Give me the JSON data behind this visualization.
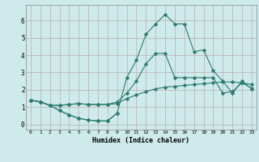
{
  "xlabel": "Humidex (Indice chaleur)",
  "x": [
    0,
    1,
    2,
    3,
    4,
    5,
    6,
    7,
    8,
    9,
    10,
    11,
    12,
    13,
    14,
    15,
    16,
    17,
    18,
    19,
    20,
    21,
    22,
    23
  ],
  "line1": [
    1.4,
    1.3,
    1.1,
    1.1,
    1.15,
    1.2,
    1.15,
    1.15,
    1.15,
    1.2,
    1.5,
    1.7,
    1.9,
    2.05,
    2.15,
    2.2,
    2.25,
    2.3,
    2.35,
    2.4,
    2.45,
    2.45,
    2.4,
    2.3
  ],
  "line2": [
    1.4,
    1.3,
    1.1,
    0.8,
    0.55,
    0.35,
    0.25,
    0.2,
    0.2,
    0.65,
    null,
    null,
    null,
    null,
    null,
    null,
    null,
    null,
    null,
    null,
    null,
    null,
    null,
    null
  ],
  "line3": [
    1.4,
    1.3,
    1.1,
    1.1,
    1.15,
    1.2,
    1.15,
    1.15,
    1.15,
    1.3,
    1.8,
    2.5,
    3.5,
    4.1,
    4.1,
    2.7,
    2.7,
    2.7,
    2.7,
    2.7,
    1.8,
    1.9,
    2.4,
    2.1
  ],
  "line4": [
    1.4,
    1.3,
    1.1,
    0.8,
    0.55,
    0.35,
    0.25,
    0.2,
    0.2,
    0.65,
    2.7,
    3.7,
    5.2,
    5.8,
    6.35,
    5.8,
    5.8,
    4.2,
    4.3,
    3.1,
    2.5,
    1.8,
    2.5,
    2.05
  ],
  "line_color": "#2d7b6e",
  "bg_color": "#ceeaea",
  "grid_color": "#b8b0b0",
  "ylim": [
    -0.3,
    6.9
  ],
  "yticks": [
    0,
    1,
    2,
    3,
    4,
    5,
    6
  ],
  "xlim": [
    -0.5,
    23.5
  ],
  "figw": 3.2,
  "figh": 2.0,
  "dpi": 100
}
